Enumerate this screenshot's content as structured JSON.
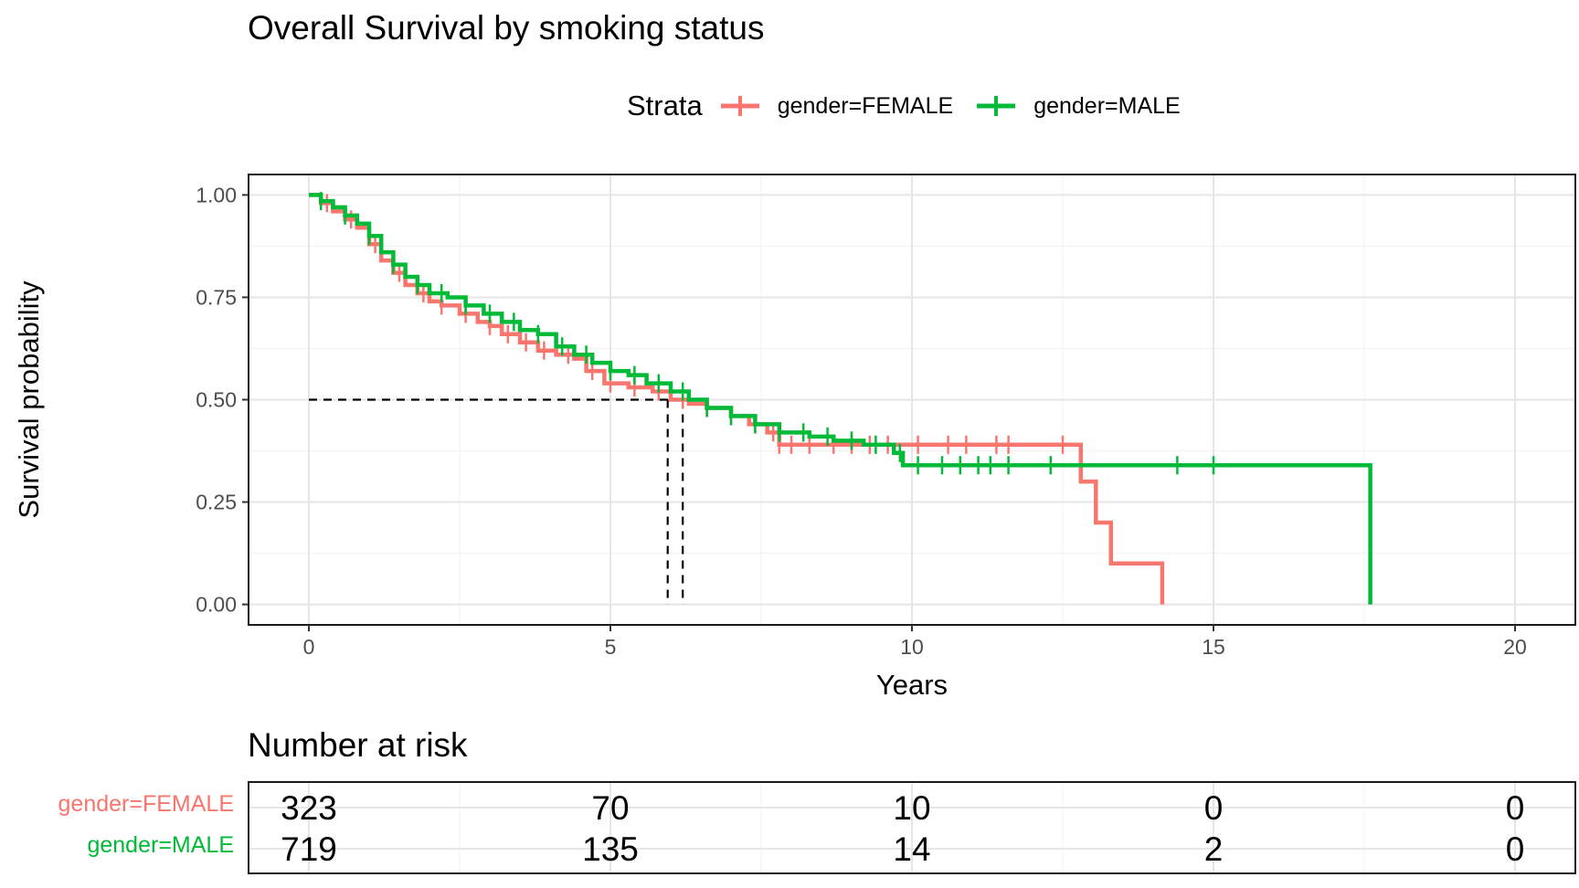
{
  "chart_data": {
    "type": "line",
    "title": "Overall Survival by smoking status",
    "xlabel": "Years",
    "ylabel": "Survival probability",
    "xlim": [
      -1,
      21
    ],
    "ylim": [
      -0.05,
      1.05
    ],
    "x_ticks": [
      0,
      5,
      10,
      15,
      20
    ],
    "y_ticks": [
      0,
      0.25,
      0.5,
      0.75,
      1.0
    ],
    "x_tick_labels": [
      "0",
      "5",
      "10",
      "15",
      "20"
    ],
    "y_tick_labels": [
      "0.00",
      "0.25",
      "0.50",
      "0.75",
      "1.00"
    ],
    "grid": true,
    "legend": {
      "title": "Strata",
      "position": "top"
    },
    "series": [
      {
        "name": "gender=FEMALE",
        "color": "#F8766D",
        "points": [
          [
            0,
            1.0
          ],
          [
            0.2,
            0.98
          ],
          [
            0.4,
            0.96
          ],
          [
            0.6,
            0.94
          ],
          [
            0.8,
            0.92
          ],
          [
            1.0,
            0.88
          ],
          [
            1.2,
            0.84
          ],
          [
            1.4,
            0.81
          ],
          [
            1.6,
            0.78
          ],
          [
            1.8,
            0.76
          ],
          [
            2.0,
            0.74
          ],
          [
            2.2,
            0.73
          ],
          [
            2.5,
            0.71
          ],
          [
            2.8,
            0.69
          ],
          [
            3.0,
            0.68
          ],
          [
            3.2,
            0.66
          ],
          [
            3.5,
            0.64
          ],
          [
            3.8,
            0.62
          ],
          [
            4.1,
            0.61
          ],
          [
            4.4,
            0.6
          ],
          [
            4.6,
            0.57
          ],
          [
            4.9,
            0.54
          ],
          [
            5.3,
            0.53
          ],
          [
            5.7,
            0.52
          ],
          [
            6.0,
            0.5
          ],
          [
            6.3,
            0.49
          ],
          [
            6.6,
            0.48
          ],
          [
            7.0,
            0.46
          ],
          [
            7.3,
            0.44
          ],
          [
            7.6,
            0.42
          ],
          [
            7.8,
            0.39
          ],
          [
            9.0,
            0.39
          ],
          [
            10.0,
            0.39
          ],
          [
            12.8,
            0.39
          ],
          [
            12.8,
            0.3
          ],
          [
            13.05,
            0.3
          ],
          [
            13.05,
            0.2
          ],
          [
            13.3,
            0.2
          ],
          [
            13.3,
            0.1
          ],
          [
            14.15,
            0.1
          ],
          [
            14.15,
            0.0
          ]
        ],
        "censor_x": [
          0.3,
          0.7,
          1.1,
          1.5,
          1.9,
          2.2,
          2.6,
          3.0,
          3.3,
          3.6,
          3.9,
          4.3,
          4.7,
          5.0,
          5.4,
          5.8,
          6.2,
          6.6,
          7.0,
          7.4,
          7.7,
          7.8,
          8.0,
          8.3,
          8.7,
          9.0,
          9.3,
          9.6,
          10.1,
          10.6,
          10.9,
          11.4,
          11.6,
          12.5
        ]
      },
      {
        "name": "gender=MALE",
        "color": "#00BA38",
        "points": [
          [
            0,
            1.0
          ],
          [
            0.2,
            0.985
          ],
          [
            0.4,
            0.97
          ],
          [
            0.6,
            0.95
          ],
          [
            0.8,
            0.93
          ],
          [
            1.0,
            0.9
          ],
          [
            1.2,
            0.86
          ],
          [
            1.4,
            0.83
          ],
          [
            1.6,
            0.8
          ],
          [
            1.8,
            0.78
          ],
          [
            2.0,
            0.76
          ],
          [
            2.3,
            0.75
          ],
          [
            2.6,
            0.73
          ],
          [
            2.9,
            0.71
          ],
          [
            3.2,
            0.69
          ],
          [
            3.5,
            0.67
          ],
          [
            3.8,
            0.66
          ],
          [
            4.1,
            0.63
          ],
          [
            4.4,
            0.61
          ],
          [
            4.7,
            0.59
          ],
          [
            5.0,
            0.57
          ],
          [
            5.3,
            0.56
          ],
          [
            5.6,
            0.54
          ],
          [
            6.0,
            0.52
          ],
          [
            6.3,
            0.5
          ],
          [
            6.6,
            0.48
          ],
          [
            7.0,
            0.46
          ],
          [
            7.4,
            0.44
          ],
          [
            7.8,
            0.42
          ],
          [
            8.3,
            0.41
          ],
          [
            8.7,
            0.4
          ],
          [
            9.2,
            0.39
          ],
          [
            9.7,
            0.37
          ],
          [
            9.85,
            0.34
          ],
          [
            15.0,
            0.34
          ],
          [
            17.6,
            0.34
          ],
          [
            17.6,
            0.0
          ]
        ],
        "censor_x": [
          0.2,
          0.6,
          1.0,
          1.4,
          1.8,
          2.2,
          2.6,
          3.0,
          3.4,
          3.8,
          4.2,
          4.6,
          5.0,
          5.4,
          5.8,
          6.2,
          6.6,
          7.0,
          7.4,
          7.8,
          8.2,
          8.6,
          9.0,
          9.4,
          9.8,
          10.1,
          10.5,
          10.8,
          11.1,
          11.3,
          11.6,
          12.3,
          14.4,
          15.0
        ]
      }
    ],
    "median_lines": [
      {
        "x": 5.95,
        "y": 0.5
      },
      {
        "x": 6.2,
        "y": 0.5
      }
    ],
    "risk_table": {
      "title": "Number at risk",
      "times": [
        0,
        5,
        10,
        15,
        20
      ],
      "rows": [
        {
          "label": "gender=FEMALE",
          "color": "#F8766D",
          "values": [
            "323",
            "70",
            "10",
            "0",
            "0"
          ]
        },
        {
          "label": "gender=MALE",
          "color": "#00BA38",
          "values": [
            "719",
            "135",
            "14",
            "2",
            "0"
          ]
        }
      ]
    }
  }
}
